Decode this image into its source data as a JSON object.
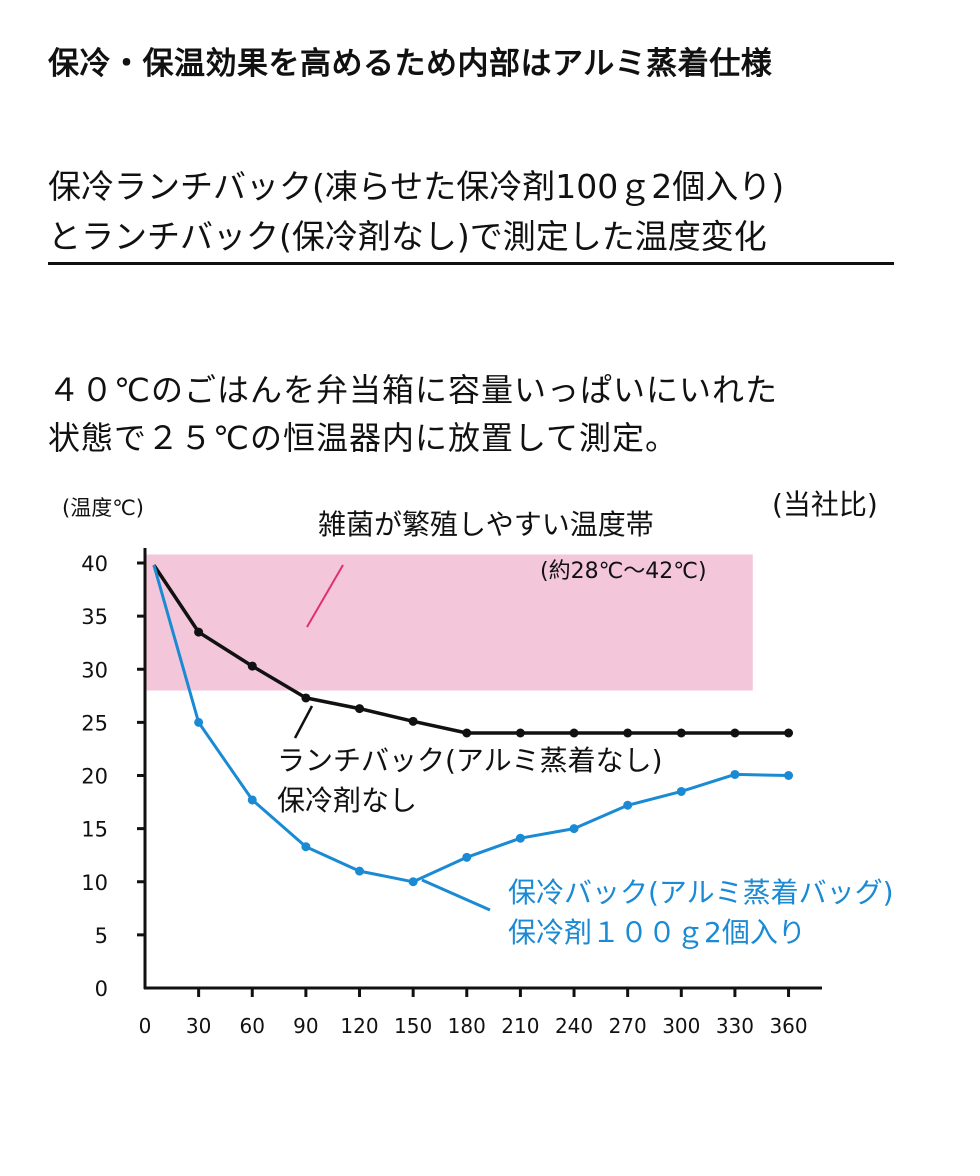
{
  "header": {
    "headline": "保冷・保温効果を高めるため内部はアルミ蒸着仕様",
    "subtitle_line1": "保冷ランチバック(凍らせた保冷剤100ｇ2個入り)",
    "subtitle_line2": "とランチバック(保冷剤なし)で測定した温度変化",
    "description_line1": "４０℃のごはんを弁当箱に容量いっぱいにいれた",
    "description_line2": "状態で２５℃の恒温器内に放置して測定。"
  },
  "chart_data": {
    "type": "line",
    "ylabel": "(温度℃)",
    "note": "(当社比)",
    "x": [
      0,
      30,
      60,
      90,
      120,
      150,
      180,
      210,
      240,
      270,
      300,
      330,
      360
    ],
    "x_tick_labels": [
      "0",
      "30",
      "60",
      "90",
      "120",
      "150",
      "180",
      "210",
      "240",
      "270",
      "300",
      "330",
      "360"
    ],
    "y_ticks": [
      0,
      5,
      10,
      15,
      20,
      25,
      30,
      35,
      40
    ],
    "y_tick_labels": [
      "0",
      "5",
      "10",
      "15",
      "20",
      "25",
      "30",
      "35",
      "40"
    ],
    "xlim": [
      0,
      372
    ],
    "ylim": [
      0,
      40
    ],
    "grid": false,
    "band": {
      "label": "雑菌が繁殖しやすい温度帯",
      "sublabel": "(約28℃〜42℃)",
      "y_from": 28,
      "y_to": 40.8,
      "x_from": 0,
      "x_to": 340,
      "color": "#f4c6d9",
      "pointer_color": "#e0306e"
    },
    "series": [
      {
        "label_lines": [
          "ランチバック(アルミ蒸着なし)",
          "保冷剤なし"
        ],
        "color": "#111111",
        "x": [
          5,
          30,
          60,
          90,
          120,
          150,
          180,
          210,
          240,
          270,
          300,
          330,
          360
        ],
        "values": [
          39.8,
          33.5,
          30.3,
          27.3,
          26.3,
          25.1,
          24.0,
          24.0,
          24.0,
          24.0,
          24.0,
          24.0,
          24.0
        ]
      },
      {
        "label_lines": [
          "保冷バック(アルミ蒸着バッグ)",
          "保冷剤１００ｇ2個入り"
        ],
        "color": "#1a8ad4",
        "x": [
          5,
          30,
          60,
          90,
          120,
          150,
          180,
          210,
          240,
          270,
          300,
          330,
          360
        ],
        "values": [
          39.8,
          25.0,
          17.7,
          13.3,
          11.0,
          10.0,
          12.3,
          14.1,
          15.0,
          17.2,
          18.5,
          20.1,
          20.0
        ]
      }
    ]
  }
}
